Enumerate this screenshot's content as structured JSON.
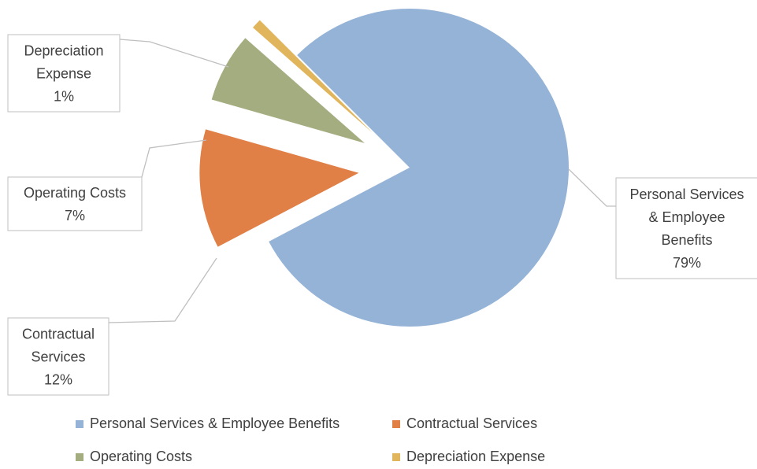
{
  "chart_data": {
    "type": "pie",
    "title": "",
    "categories": [
      "Personal Services & Employee Benefits",
      "Contractual Services",
      "Operating Costs",
      "Depreciation Expense"
    ],
    "values": [
      79,
      12,
      7,
      1
    ],
    "data_labels": [
      {
        "lines": [
          "Personal Services",
          "& Employee",
          "Benefits"
        ],
        "percent": "79%"
      },
      {
        "lines": [
          "Contractual",
          "Services"
        ],
        "percent": "12%"
      },
      {
        "lines": [
          "Operating Costs"
        ],
        "percent": "7%"
      },
      {
        "lines": [
          "Depreciation",
          "Expense"
        ],
        "percent": "1%"
      }
    ],
    "colors": [
      "#95b3d7",
      "#e07f46",
      "#a4ad80",
      "#e1b55c"
    ],
    "exploded": [
      false,
      true,
      true,
      true
    ],
    "legend": {
      "placement": "bottom",
      "entries": [
        "Personal Services & Employee Benefits",
        "Contractual Services",
        "Operating Costs",
        "Depreciation Expense"
      ]
    }
  }
}
